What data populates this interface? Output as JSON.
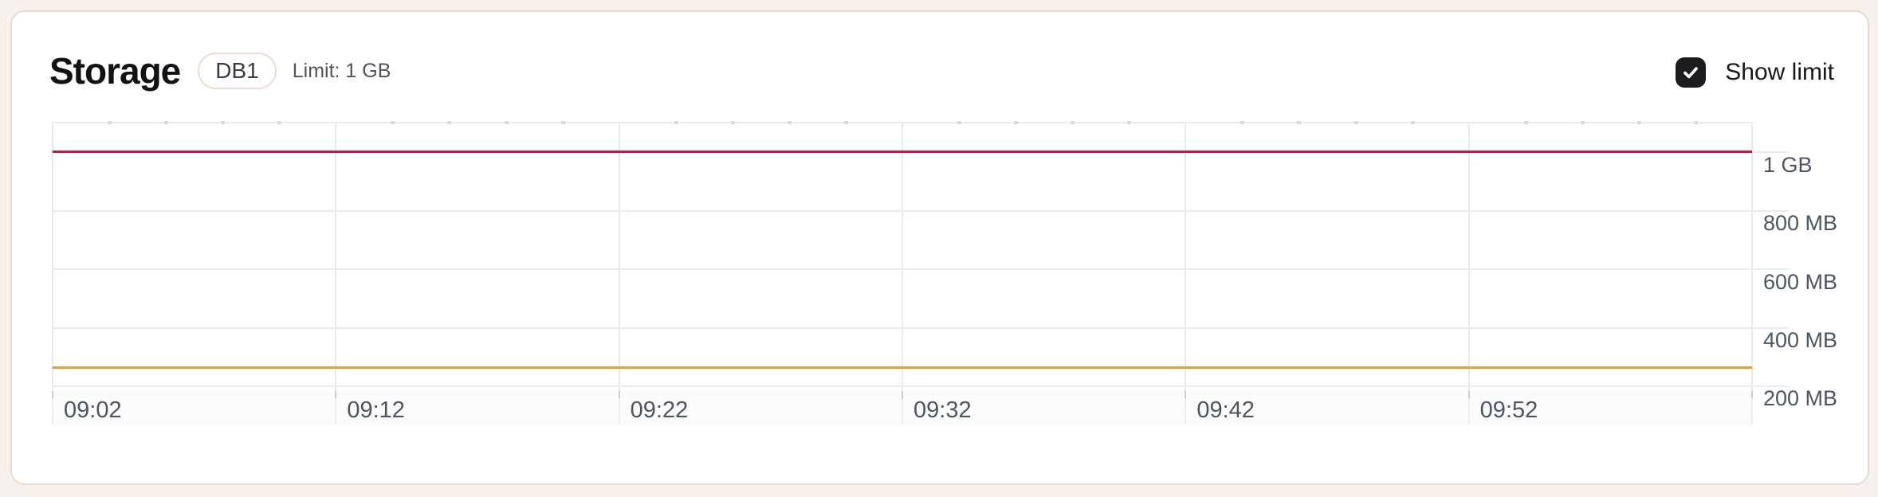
{
  "header": {
    "title": "Storage",
    "badge": "DB1",
    "limit_label": "Limit: 1 GB",
    "show_limit_label": "Show limit",
    "show_limit_checked": true
  },
  "colors": {
    "page_bg": "#f7f1ed",
    "card_bg": "#ffffff",
    "card_border": "#ead9d1",
    "grid": "#e8ebf0",
    "tick_minor": "#d9dbdf",
    "tick_dark": "#c9ccd2",
    "axis_text": "#4b5563",
    "limit_line": "#d60f3c",
    "usage_line": "#e3a42e",
    "checkbox": "#1c1c20"
  },
  "chart_data": {
    "type": "line",
    "title": "Storage",
    "x": [
      "09:02",
      "09:12",
      "09:22",
      "09:32",
      "09:42",
      "09:52"
    ],
    "y_tick_labels": [
      "1 GB",
      "800 MB",
      "600 MB",
      "400 MB",
      "200 MB"
    ],
    "y_tick_values_mb": [
      1000,
      800,
      600,
      400,
      200
    ],
    "series": [
      {
        "name": "limit",
        "color": "#d60f3c",
        "values_mb": [
          1000,
          1000,
          1000,
          1000,
          1000,
          1000
        ]
      },
      {
        "name": "storage_used",
        "color": "#e3a42e",
        "values_mb": [
          260,
          260,
          260,
          260,
          260,
          260
        ]
      }
    ],
    "ylim_mb": [
      180,
      1100
    ],
    "x_major_tick_minutes": 10,
    "x_minor_tick_minutes": 2,
    "grid": true,
    "legend": "none"
  }
}
